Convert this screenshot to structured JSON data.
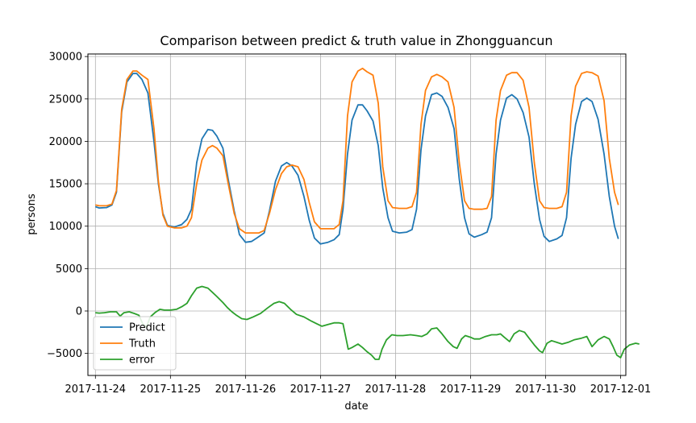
{
  "chart_data": {
    "type": "line",
    "title": "Comparison between predict & truth value in Zhongguancun",
    "xlabel": "date",
    "ylabel": "persons",
    "x_tick_labels": [
      "2017-11-24",
      "2017-11-25",
      "2017-11-26",
      "2017-11-27",
      "2017-11-28",
      "2017-11-29",
      "2017-11-30",
      "2017-12-01"
    ],
    "x_range_days": [
      -0.1,
      7.07
    ],
    "y_ticks": [
      -5000,
      0,
      5000,
      10000,
      15000,
      20000,
      25000,
      30000
    ],
    "y_tick_labels": [
      "−5000",
      "0",
      "5000",
      "10000",
      "15000",
      "20000",
      "25000",
      "30000"
    ],
    "ylim": [
      -7600,
      30300
    ],
    "grid": true,
    "legend_position": "lower-left",
    "series": [
      {
        "name": "Predict",
        "color": "#1f77b4",
        "points": [
          [
            0,
            12300
          ],
          [
            0.05,
            12150
          ],
          [
            0.15,
            12200
          ],
          [
            0.22,
            12500
          ],
          [
            0.28,
            14000
          ],
          [
            0.35,
            23500
          ],
          [
            0.42,
            27000
          ],
          [
            0.5,
            28000
          ],
          [
            0.55,
            28000
          ],
          [
            0.62,
            27300
          ],
          [
            0.7,
            25700
          ],
          [
            0.78,
            20000
          ],
          [
            0.84,
            15000
          ],
          [
            0.9,
            11500
          ],
          [
            0.96,
            10100
          ],
          [
            1.05,
            9900
          ],
          [
            1.15,
            10200
          ],
          [
            1.22,
            10800
          ],
          [
            1.28,
            12000
          ],
          [
            1.35,
            17500
          ],
          [
            1.42,
            20300
          ],
          [
            1.5,
            21400
          ],
          [
            1.56,
            21300
          ],
          [
            1.62,
            20600
          ],
          [
            1.7,
            19200
          ],
          [
            1.77,
            15500
          ],
          [
            1.85,
            11800
          ],
          [
            1.92,
            9000
          ],
          [
            2.0,
            8100
          ],
          [
            2.08,
            8200
          ],
          [
            2.15,
            8600
          ],
          [
            2.25,
            9200
          ],
          [
            2.32,
            11800
          ],
          [
            2.4,
            15300
          ],
          [
            2.48,
            17100
          ],
          [
            2.55,
            17500
          ],
          [
            2.62,
            17100
          ],
          [
            2.7,
            16000
          ],
          [
            2.78,
            13500
          ],
          [
            2.85,
            10700
          ],
          [
            2.92,
            8600
          ],
          [
            3.0,
            7900
          ],
          [
            3.1,
            8100
          ],
          [
            3.18,
            8400
          ],
          [
            3.25,
            9000
          ],
          [
            3.3,
            12000
          ],
          [
            3.36,
            18500
          ],
          [
            3.42,
            22500
          ],
          [
            3.5,
            24300
          ],
          [
            3.56,
            24300
          ],
          [
            3.62,
            23600
          ],
          [
            3.7,
            22400
          ],
          [
            3.77,
            19500
          ],
          [
            3.83,
            14500
          ],
          [
            3.9,
            11000
          ],
          [
            3.96,
            9400
          ],
          [
            4.05,
            9200
          ],
          [
            4.15,
            9300
          ],
          [
            4.22,
            9600
          ],
          [
            4.28,
            12000
          ],
          [
            4.34,
            19000
          ],
          [
            4.4,
            23000
          ],
          [
            4.48,
            25500
          ],
          [
            4.55,
            25700
          ],
          [
            4.62,
            25300
          ],
          [
            4.7,
            24000
          ],
          [
            4.78,
            21500
          ],
          [
            4.85,
            15500
          ],
          [
            4.92,
            11000
          ],
          [
            4.98,
            9100
          ],
          [
            5.05,
            8700
          ],
          [
            5.15,
            9000
          ],
          [
            5.22,
            9300
          ],
          [
            5.28,
            11000
          ],
          [
            5.34,
            18500
          ],
          [
            5.4,
            22500
          ],
          [
            5.48,
            25100
          ],
          [
            5.55,
            25500
          ],
          [
            5.62,
            25000
          ],
          [
            5.7,
            23400
          ],
          [
            5.78,
            20500
          ],
          [
            5.85,
            15000
          ],
          [
            5.92,
            10800
          ],
          [
            5.98,
            8800
          ],
          [
            6.05,
            8200
          ],
          [
            6.15,
            8500
          ],
          [
            6.22,
            8900
          ],
          [
            6.28,
            11000
          ],
          [
            6.34,
            18000
          ],
          [
            6.4,
            22000
          ],
          [
            6.48,
            24700
          ],
          [
            6.55,
            25100
          ],
          [
            6.62,
            24700
          ],
          [
            6.7,
            22600
          ],
          [
            6.78,
            18500
          ],
          [
            6.85,
            13500
          ],
          [
            6.92,
            10000
          ],
          [
            6.97,
            8500
          ]
        ]
      },
      {
        "name": "Truth",
        "color": "#ff7f0e",
        "points": [
          [
            0,
            12500
          ],
          [
            0.05,
            12400
          ],
          [
            0.15,
            12400
          ],
          [
            0.22,
            12600
          ],
          [
            0.28,
            14200
          ],
          [
            0.35,
            23800
          ],
          [
            0.42,
            27300
          ],
          [
            0.5,
            28300
          ],
          [
            0.55,
            28300
          ],
          [
            0.62,
            27800
          ],
          [
            0.7,
            27300
          ],
          [
            0.78,
            21500
          ],
          [
            0.84,
            15300
          ],
          [
            0.9,
            11300
          ],
          [
            0.96,
            10000
          ],
          [
            1.05,
            9800
          ],
          [
            1.15,
            9800
          ],
          [
            1.22,
            10000
          ],
          [
            1.28,
            11000
          ],
          [
            1.35,
            15000
          ],
          [
            1.42,
            17800
          ],
          [
            1.5,
            19200
          ],
          [
            1.56,
            19500
          ],
          [
            1.62,
            19200
          ],
          [
            1.7,
            18300
          ],
          [
            1.77,
            15000
          ],
          [
            1.85,
            11500
          ],
          [
            1.92,
            9700
          ],
          [
            2.0,
            9200
          ],
          [
            2.1,
            9200
          ],
          [
            2.18,
            9200
          ],
          [
            2.25,
            9500
          ],
          [
            2.32,
            11500
          ],
          [
            2.4,
            14300
          ],
          [
            2.48,
            16200
          ],
          [
            2.55,
            17000
          ],
          [
            2.62,
            17200
          ],
          [
            2.7,
            17000
          ],
          [
            2.78,
            15500
          ],
          [
            2.85,
            12800
          ],
          [
            2.92,
            10500
          ],
          [
            3.0,
            9700
          ],
          [
            3.1,
            9700
          ],
          [
            3.18,
            9700
          ],
          [
            3.25,
            10200
          ],
          [
            3.3,
            13000
          ],
          [
            3.36,
            23000
          ],
          [
            3.42,
            27000
          ],
          [
            3.5,
            28300
          ],
          [
            3.56,
            28600
          ],
          [
            3.62,
            28200
          ],
          [
            3.7,
            27800
          ],
          [
            3.77,
            24500
          ],
          [
            3.83,
            17000
          ],
          [
            3.9,
            13000
          ],
          [
            3.96,
            12200
          ],
          [
            4.05,
            12100
          ],
          [
            4.15,
            12100
          ],
          [
            4.22,
            12300
          ],
          [
            4.28,
            14000
          ],
          [
            4.34,
            22000
          ],
          [
            4.4,
            26000
          ],
          [
            4.48,
            27600
          ],
          [
            4.55,
            27900
          ],
          [
            4.62,
            27600
          ],
          [
            4.7,
            27000
          ],
          [
            4.78,
            24000
          ],
          [
            4.85,
            17500
          ],
          [
            4.92,
            13000
          ],
          [
            4.98,
            12100
          ],
          [
            5.05,
            12000
          ],
          [
            5.15,
            12000
          ],
          [
            5.22,
            12100
          ],
          [
            5.28,
            13500
          ],
          [
            5.34,
            22500
          ],
          [
            5.4,
            26000
          ],
          [
            5.48,
            27800
          ],
          [
            5.55,
            28100
          ],
          [
            5.62,
            28100
          ],
          [
            5.7,
            27200
          ],
          [
            5.78,
            24000
          ],
          [
            5.85,
            17500
          ],
          [
            5.92,
            13000
          ],
          [
            5.98,
            12200
          ],
          [
            6.05,
            12100
          ],
          [
            6.15,
            12100
          ],
          [
            6.22,
            12300
          ],
          [
            6.28,
            14000
          ],
          [
            6.34,
            23000
          ],
          [
            6.4,
            26500
          ],
          [
            6.48,
            28000
          ],
          [
            6.55,
            28200
          ],
          [
            6.62,
            28100
          ],
          [
            6.7,
            27700
          ],
          [
            6.78,
            24800
          ],
          [
            6.85,
            18000
          ],
          [
            6.92,
            14000
          ],
          [
            6.97,
            12500
          ]
        ]
      },
      {
        "name": "error",
        "color": "#2ca02c",
        "points": [
          [
            0,
            -200
          ],
          [
            0.05,
            -250
          ],
          [
            0.12,
            -200
          ],
          [
            0.2,
            -100
          ],
          [
            0.28,
            -100
          ],
          [
            0.33,
            -600
          ],
          [
            0.38,
            -200
          ],
          [
            0.45,
            -100
          ],
          [
            0.52,
            -300
          ],
          [
            0.58,
            -500
          ],
          [
            0.63,
            -1500
          ],
          [
            0.68,
            -1900
          ],
          [
            0.73,
            -700
          ],
          [
            0.8,
            -150
          ],
          [
            0.86,
            200
          ],
          [
            0.92,
            100
          ],
          [
            1.0,
            100
          ],
          [
            1.08,
            200
          ],
          [
            1.15,
            500
          ],
          [
            1.22,
            900
          ],
          [
            1.28,
            1800
          ],
          [
            1.35,
            2700
          ],
          [
            1.42,
            2900
          ],
          [
            1.5,
            2700
          ],
          [
            1.56,
            2200
          ],
          [
            1.62,
            1700
          ],
          [
            1.7,
            1000
          ],
          [
            1.76,
            400
          ],
          [
            1.82,
            -100
          ],
          [
            1.88,
            -500
          ],
          [
            1.95,
            -900
          ],
          [
            2.02,
            -1000
          ],
          [
            2.1,
            -700
          ],
          [
            2.2,
            -300
          ],
          [
            2.3,
            400
          ],
          [
            2.38,
            900
          ],
          [
            2.45,
            1100
          ],
          [
            2.52,
            900
          ],
          [
            2.6,
            200
          ],
          [
            2.68,
            -400
          ],
          [
            2.78,
            -700
          ],
          [
            2.88,
            -1200
          ],
          [
            2.95,
            -1500
          ],
          [
            3.02,
            -1800
          ],
          [
            3.1,
            -1600
          ],
          [
            3.18,
            -1400
          ],
          [
            3.25,
            -1400
          ],
          [
            3.3,
            -1500
          ],
          [
            3.37,
            -4500
          ],
          [
            3.42,
            -4300
          ],
          [
            3.5,
            -3900
          ],
          [
            3.56,
            -4300
          ],
          [
            3.62,
            -4800
          ],
          [
            3.68,
            -5200
          ],
          [
            3.73,
            -5700
          ],
          [
            3.78,
            -5700
          ],
          [
            3.82,
            -4500
          ],
          [
            3.88,
            -3400
          ],
          [
            3.95,
            -2800
          ],
          [
            4.02,
            -2900
          ],
          [
            4.1,
            -2900
          ],
          [
            4.2,
            -2800
          ],
          [
            4.28,
            -2900
          ],
          [
            4.35,
            -3000
          ],
          [
            4.42,
            -2700
          ],
          [
            4.48,
            -2100
          ],
          [
            4.55,
            -2000
          ],
          [
            4.62,
            -2700
          ],
          [
            4.7,
            -3600
          ],
          [
            4.77,
            -4200
          ],
          [
            4.82,
            -4400
          ],
          [
            4.88,
            -3300
          ],
          [
            4.93,
            -2900
          ],
          [
            5.0,
            -3100
          ],
          [
            5.05,
            -3300
          ],
          [
            5.12,
            -3300
          ],
          [
            5.2,
            -3000
          ],
          [
            5.28,
            -2800
          ],
          [
            5.35,
            -2800
          ],
          [
            5.4,
            -2700
          ],
          [
            5.45,
            -3100
          ],
          [
            5.52,
            -3600
          ],
          [
            5.58,
            -2700
          ],
          [
            5.65,
            -2300
          ],
          [
            5.72,
            -2500
          ],
          [
            5.78,
            -3200
          ],
          [
            5.85,
            -4000
          ],
          [
            5.92,
            -4700
          ],
          [
            5.96,
            -4900
          ],
          [
            6.02,
            -3800
          ],
          [
            6.08,
            -3500
          ],
          [
            6.15,
            -3700
          ],
          [
            6.22,
            -3900
          ],
          [
            6.3,
            -3700
          ],
          [
            6.38,
            -3400
          ],
          [
            6.48,
            -3200
          ],
          [
            6.55,
            -3000
          ],
          [
            6.62,
            -4200
          ],
          [
            6.7,
            -3400
          ],
          [
            6.78,
            -3000
          ],
          [
            6.85,
            -3300
          ],
          [
            6.9,
            -4200
          ],
          [
            6.95,
            -5200
          ],
          [
            7.0,
            -5500
          ],
          [
            7.05,
            -4500
          ],
          [
            7.12,
            -4000
          ],
          [
            7.2,
            -3800
          ],
          [
            7.25,
            -3900
          ]
        ]
      }
    ]
  }
}
